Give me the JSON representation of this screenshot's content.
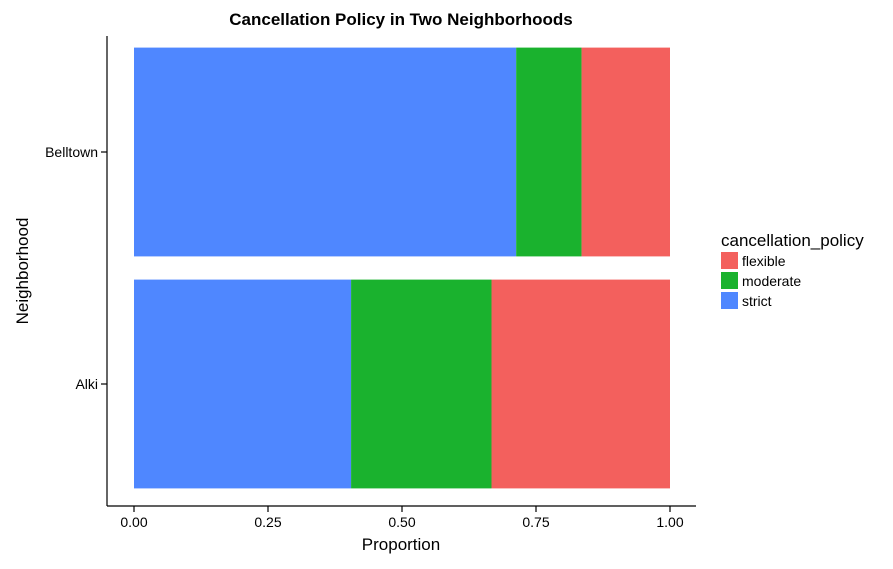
{
  "chart_data": {
    "type": "bar",
    "orientation": "horizontal",
    "stacked": true,
    "title": "Cancellation Policy in Two Neighborhoods",
    "xlabel": "Proportion",
    "ylabel": "Neighborhood",
    "xlim": [
      0,
      1
    ],
    "x_ticks": [
      "0.00",
      "0.25",
      "0.50",
      "0.75",
      "1.00"
    ],
    "x_tick_values": [
      0,
      0.25,
      0.5,
      0.75,
      1.0
    ],
    "categories": [
      "Belltown",
      "Alki"
    ],
    "series": [
      {
        "name": "strict",
        "color": "#4F87FF",
        "values": [
          0.713,
          0.405
        ]
      },
      {
        "name": "moderate",
        "color": "#1AB22E",
        "values": [
          0.122,
          0.262
        ]
      },
      {
        "name": "flexible",
        "color": "#F3605D",
        "values": [
          0.165,
          0.333
        ]
      }
    ],
    "legend": {
      "title": "cancellation_policy",
      "placement": "right",
      "entries": [
        {
          "label": "flexible",
          "color": "#F3605D"
        },
        {
          "label": "moderate",
          "color": "#1AB22E"
        },
        {
          "label": "strict",
          "color": "#4F87FF"
        }
      ]
    },
    "grid": false
  }
}
